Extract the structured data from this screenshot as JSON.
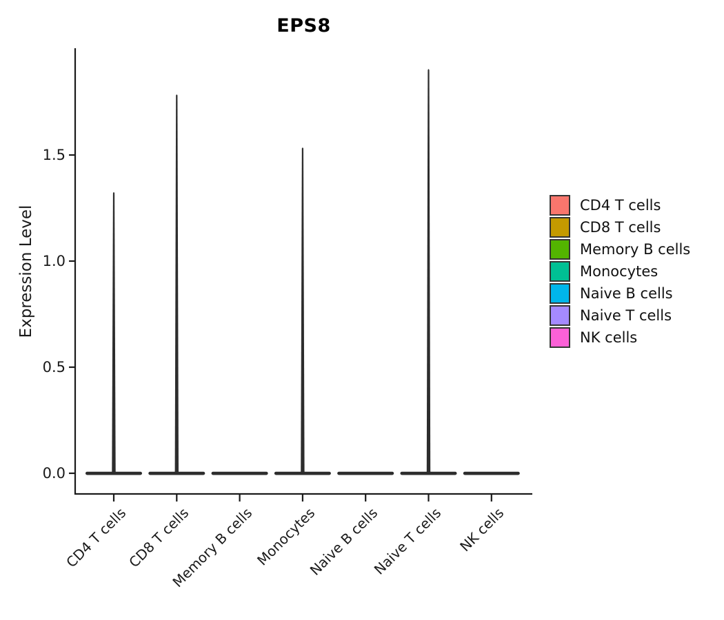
{
  "figure": {
    "title": "EPS8",
    "y_axis_label": "Expression Level"
  },
  "chart_data": {
    "type": "violin",
    "title": "EPS8",
    "xlabel": "",
    "ylabel": "Expression Level",
    "categories": [
      "CD4 T cells",
      "CD8 T cells",
      "Memory B cells",
      "Monocytes",
      "Naive B cells",
      "Naive T cells",
      "NK cells"
    ],
    "series": [
      {
        "name": "CD4 T cells",
        "color": "#F8766D",
        "baseline": 0.0,
        "peak_expression": 1.33
      },
      {
        "name": "CD8 T cells",
        "color": "#C49A00",
        "baseline": 0.0,
        "peak_expression": 1.79
      },
      {
        "name": "Memory B cells",
        "color": "#53B400",
        "baseline": 0.0,
        "peak_expression": 0.0
      },
      {
        "name": "Monocytes",
        "color": "#00C094",
        "baseline": 0.0,
        "peak_expression": 1.54
      },
      {
        "name": "Naive B cells",
        "color": "#00B6EB",
        "baseline": 0.0,
        "peak_expression": 0.0
      },
      {
        "name": "Naive T cells",
        "color": "#A58AFF",
        "baseline": 0.0,
        "peak_expression": 1.91
      },
      {
        "name": "NK cells",
        "color": "#FB61D7",
        "baseline": 0.0,
        "peak_expression": 0.0
      }
    ],
    "yticks": [
      0.0,
      0.5,
      1.0,
      1.5
    ],
    "ytick_labels": [
      "0.0",
      "0.5",
      "1.0",
      "1.5"
    ],
    "ylim": [
      -0.1,
      2.0
    ],
    "grid": false,
    "legend_position": "right",
    "axis_color": "#1a1a1a",
    "violin_color": "#2d2d2d",
    "tick_label_color": "#1a1a1a"
  }
}
